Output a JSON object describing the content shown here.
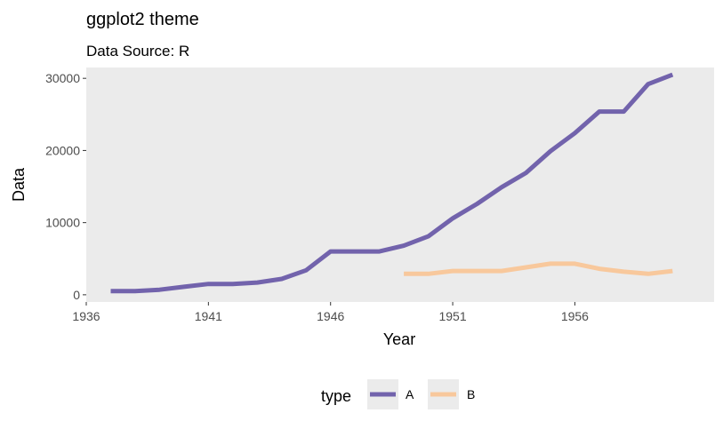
{
  "chart_data": {
    "type": "line",
    "title": "ggplot2 theme",
    "subtitle": "Data Source: R",
    "xlabel": "Year",
    "ylabel": "Data",
    "xlim": [
      1936,
      1961.7
    ],
    "ylim": [
      -1000,
      31500
    ],
    "x_ticks": [
      1936,
      1941,
      1946,
      1951,
      1956
    ],
    "y_ticks": [
      0,
      10000,
      20000,
      30000
    ],
    "grid": false,
    "legend": {
      "title": "type",
      "position": "bottom"
    },
    "colors": {
      "panel": "#ebebeb",
      "A": "#7263ac",
      "B": "#f8c89c",
      "tick": "#333333"
    },
    "series": [
      {
        "name": "A",
        "x": [
          1937,
          1938,
          1939,
          1940,
          1941,
          1942,
          1943,
          1944,
          1945,
          1946,
          1947,
          1948,
          1949,
          1950,
          1951,
          1952,
          1953,
          1954,
          1955,
          1956,
          1957,
          1958,
          1959,
          1960
        ],
        "values": [
          500,
          500,
          700,
          1100,
          1500,
          1500,
          1700,
          2200,
          3400,
          6000,
          6000,
          6000,
          6800,
          8100,
          10600,
          12600,
          14900,
          16900,
          19900,
          22400,
          25400,
          25400,
          29200,
          30500
        ]
      },
      {
        "name": "B",
        "x": [
          1949,
          1950,
          1951,
          1952,
          1953,
          1954,
          1955,
          1956,
          1957,
          1958,
          1959,
          1960
        ],
        "values": [
          2900,
          2900,
          3300,
          3300,
          3300,
          3800,
          4300,
          4300,
          3600,
          3200,
          2900,
          3300
        ]
      }
    ]
  }
}
